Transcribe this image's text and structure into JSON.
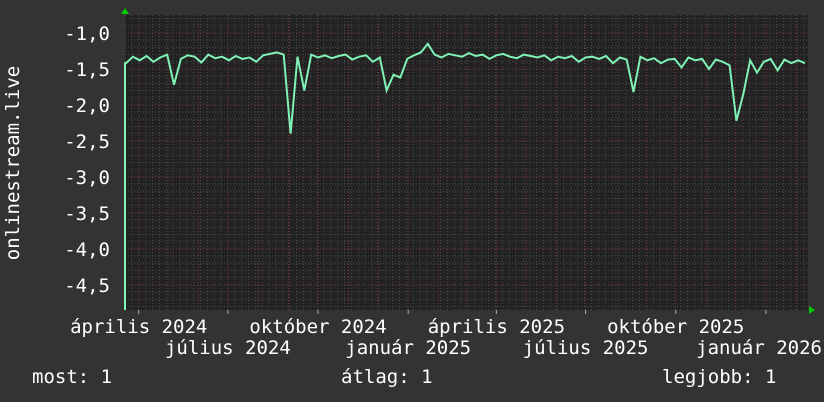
{
  "chart_data": {
    "type": "line",
    "title": "",
    "ylabel": "onlinestream.live",
    "xlabel": "",
    "ylim": [
      -4.85,
      -0.75
    ],
    "xlim": [
      "2024-03-18",
      "2026-02-13"
    ],
    "yticks": [
      "-1,0",
      "-1,5",
      "-2,0",
      "-2,5",
      "-3,0",
      "-3,5",
      "-4,0",
      "-4,5"
    ],
    "ytick_values": [
      -1.0,
      -1.5,
      -2.0,
      -2.5,
      -3.0,
      -3.5,
      -4.0,
      -4.5
    ],
    "xticks": [
      "április 2024",
      "július 2024",
      "október 2024",
      "január 2025",
      "április 2025",
      "július 2025",
      "október 2025",
      "január 2026"
    ],
    "xtick_dates": [
      "2024-04-01",
      "2024-07-01",
      "2024-10-01",
      "2025-01-01",
      "2025-04-01",
      "2025-07-01",
      "2025-10-01",
      "2026-01-01"
    ],
    "grid": true,
    "series": [
      {
        "color": "#80f2b6",
        "values": [
          -1.42,
          -1.33,
          -1.38,
          -1.32,
          -1.4,
          -1.34,
          -1.3,
          -1.72,
          -1.36,
          -1.31,
          -1.33,
          -1.41,
          -1.3,
          -1.35,
          -1.33,
          -1.38,
          -1.32,
          -1.36,
          -1.34,
          -1.4,
          -1.31,
          -1.29,
          -1.27,
          -1.3,
          -2.4,
          -1.33,
          -1.8,
          -1.3,
          -1.34,
          -1.31,
          -1.35,
          -1.32,
          -1.3,
          -1.37,
          -1.33,
          -1.31,
          -1.4,
          -1.34,
          -1.8,
          -1.58,
          -1.62,
          -1.36,
          -1.31,
          -1.27,
          -1.15,
          -1.3,
          -1.34,
          -1.29,
          -1.31,
          -1.33,
          -1.28,
          -1.32,
          -1.3,
          -1.36,
          -1.31,
          -1.29,
          -1.33,
          -1.35,
          -1.3,
          -1.32,
          -1.34,
          -1.31,
          -1.38,
          -1.33,
          -1.35,
          -1.32,
          -1.4,
          -1.34,
          -1.33,
          -1.36,
          -1.32,
          -1.42,
          -1.34,
          -1.37,
          -1.82,
          -1.33,
          -1.38,
          -1.35,
          -1.42,
          -1.37,
          -1.36,
          -1.48,
          -1.34,
          -1.38,
          -1.36,
          -1.5,
          -1.37,
          -1.4,
          -1.45,
          -2.22,
          -1.85,
          -1.38,
          -1.55,
          -1.4,
          -1.36,
          -1.52,
          -1.37,
          -1.42,
          -1.38,
          -1.42
        ]
      }
    ]
  },
  "legend": {
    "current": "most: 1",
    "average": "átlag: 1",
    "max": "legjobb: 1"
  }
}
